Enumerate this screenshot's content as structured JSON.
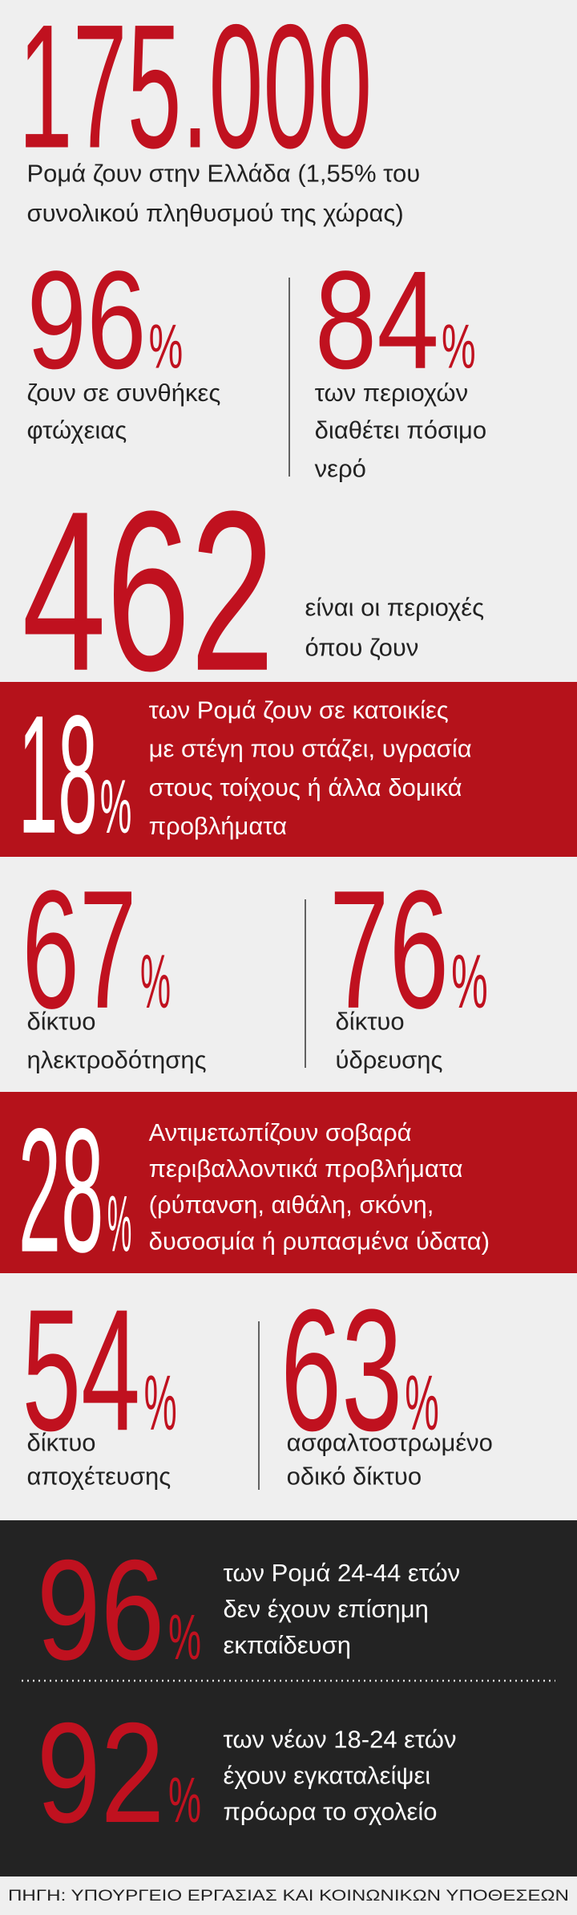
{
  "headline": {
    "number": "175.000",
    "lines": [
      "Ρομά ζουν στην Ελλάδα (1,55% του",
      "συνολικού πληθυσμού της χώρας)"
    ]
  },
  "stats": [
    {
      "number": 96,
      "unit": "%",
      "lines": [
        "ζουν σε συνθήκες",
        "φτώχειας"
      ]
    },
    {
      "number": 84,
      "unit": "%",
      "lines": [
        "των περιοχών",
        "διαθέτει πόσιμο",
        "νερό"
      ]
    },
    {
      "number": 462,
      "lines": [
        "είναι οι περιοχές",
        "όπου ζουν"
      ]
    },
    {
      "number": 18,
      "unit": "%",
      "lines": [
        "των Ρομά ζουν σε κατοικίες",
        "με στέγη που στάζει, υγρασία",
        "στους τοίχους ή άλλα δομικά",
        "προβλήματα"
      ]
    },
    {
      "number": 67,
      "unit": "%",
      "lines": [
        "δίκτυο",
        "ηλεκτροδότησης"
      ]
    },
    {
      "number": 76,
      "unit": "%",
      "lines": [
        "δίκτυο",
        "ύδρευσης"
      ]
    },
    {
      "number": 28,
      "unit": "%",
      "lines": [
        "Αντιμετωπίζουν σοβαρά",
        "περιβαλλοντικά προβλήματα",
        "(ρύπανση, αιθάλη, σκόνη,",
        "δυσοσμία ή ρυπασμένα ύδατα)"
      ]
    },
    {
      "number": 54,
      "unit": "%",
      "lines": [
        "δίκτυο",
        "αποχέτευσης"
      ]
    },
    {
      "number": 63,
      "unit": "%",
      "lines": [
        "ασφαλτοστρωμένο",
        "οδικό δίκτυο"
      ]
    },
    {
      "number": 96,
      "unit": "%",
      "lines": [
        "των Ρομά 24-44 ετών",
        "δεν έχουν επίσημη",
        "εκπαίδευση"
      ]
    },
    {
      "number": 92,
      "unit": "%",
      "lines": [
        "των νέων 18-24 ετών",
        "έχουν εγκαταλείψει",
        "πρόωρα το σχολείο"
      ]
    }
  ],
  "source": "ΠΗΓΗ: ΥΠΟΥΡΓΕΙΟ ΕΡΓΑΣΙΑΣ ΚΑΙ ΚΟΙΝΩΝΙΚΩΝ ΥΠΟΘΕΣΕΩΝ"
}
